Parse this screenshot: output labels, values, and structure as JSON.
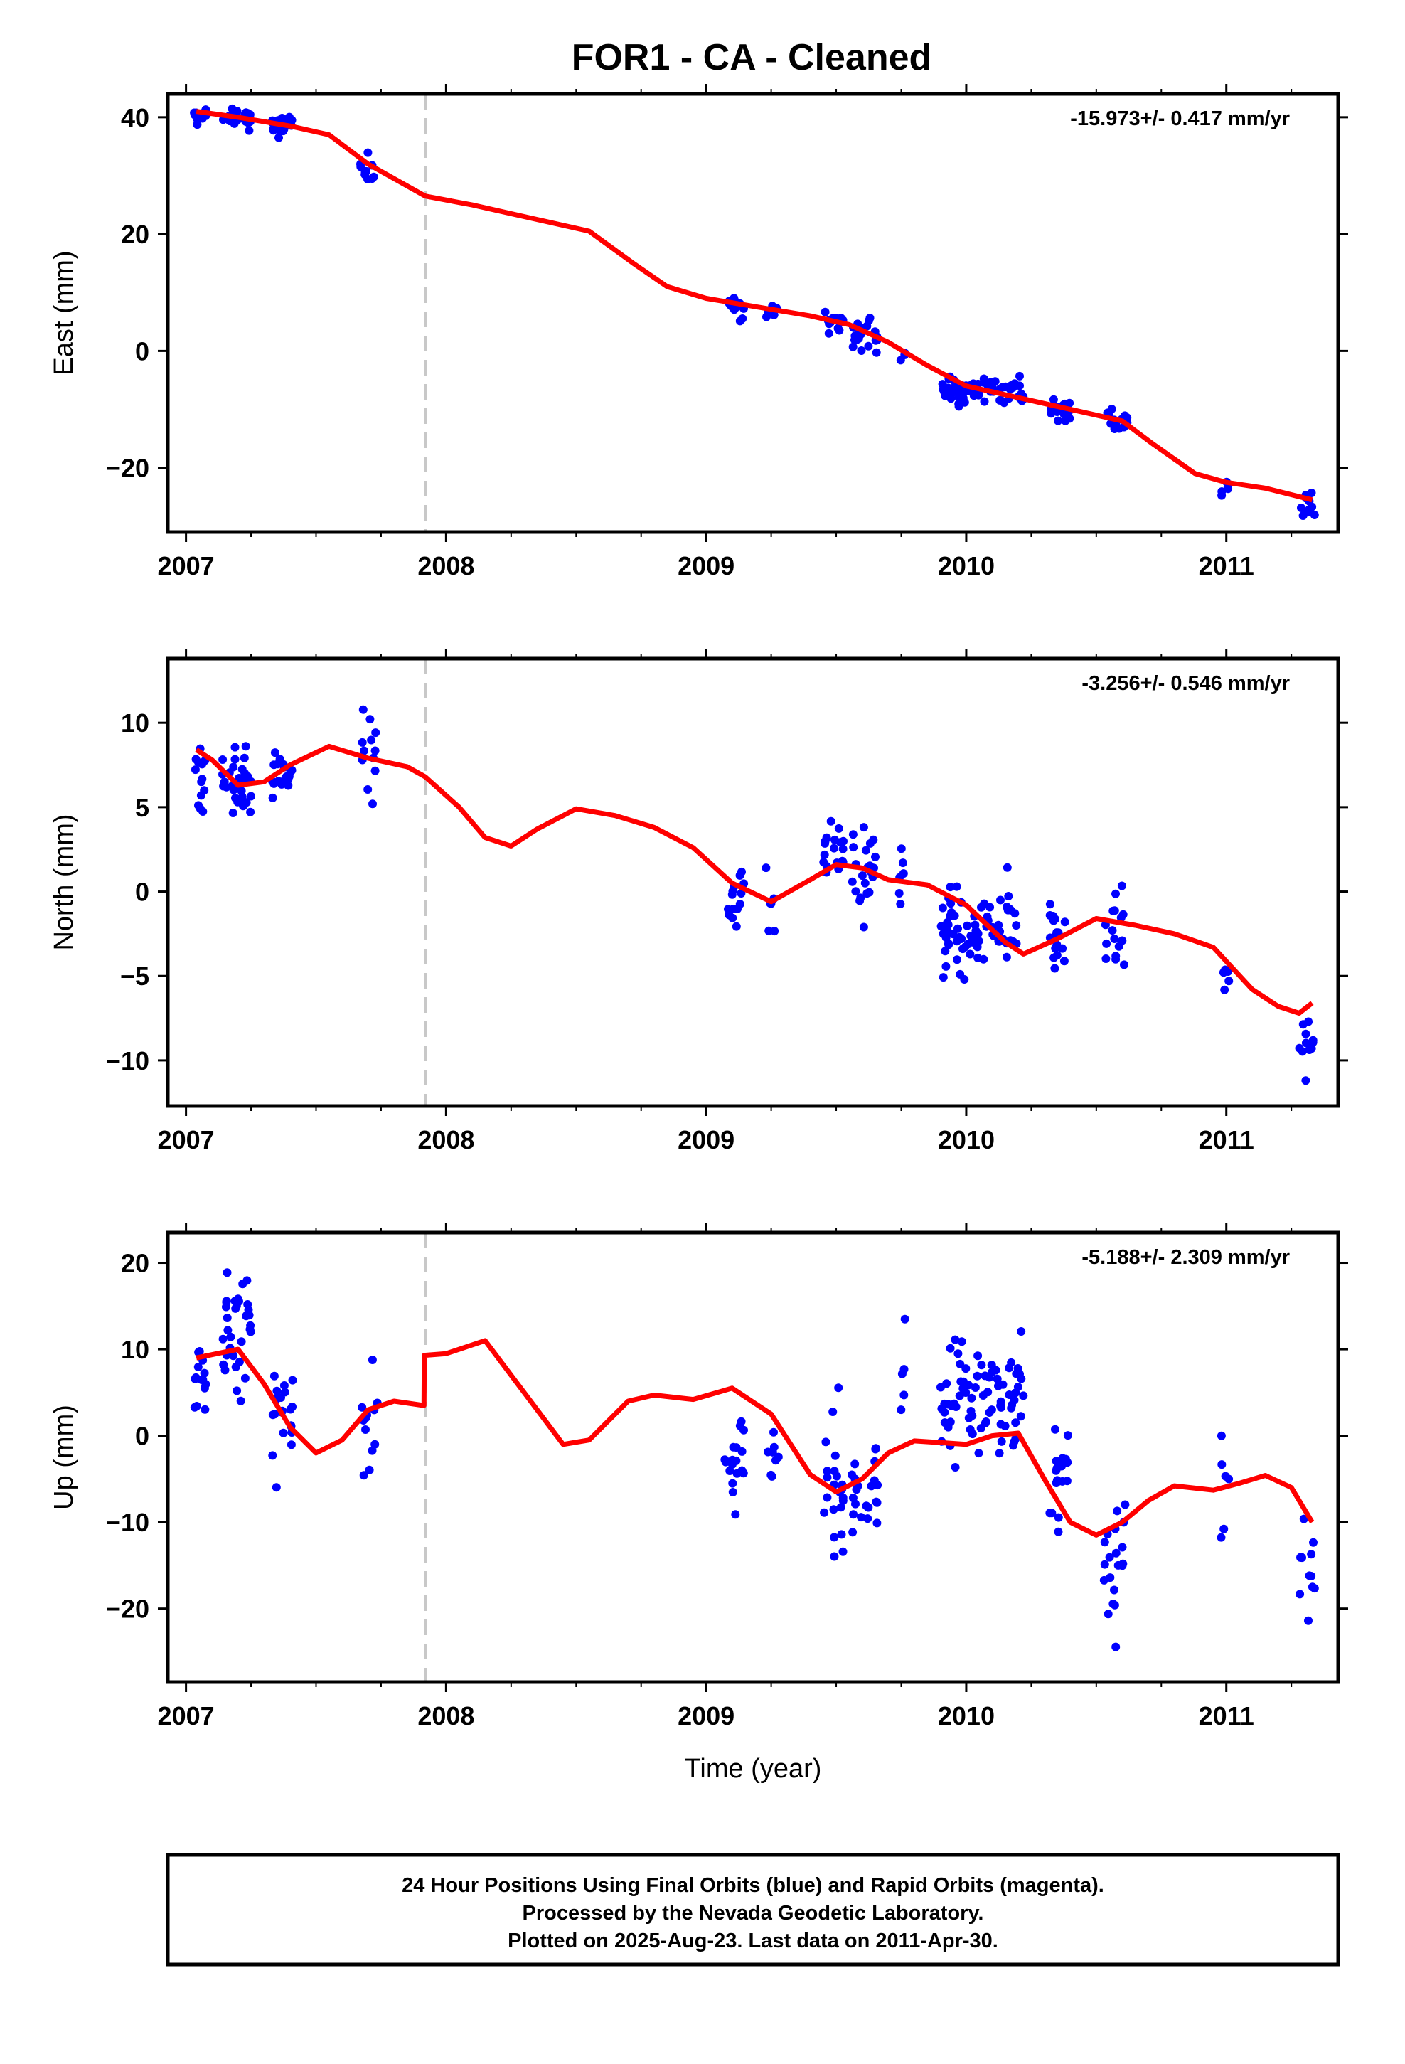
{
  "title": "FOR1  - CA - Cleaned",
  "colors": {
    "fit": "#ff0000",
    "points": "#0000ff",
    "offset_line": "#c8c8c8",
    "frame": "#000000"
  },
  "footer": {
    "line1": "24 Hour Positions Using Final Orbits (blue) and Rapid Orbits (magenta).",
    "line2": "Processed by the Nevada Geodetic Laboratory.",
    "line3": "Plotted on 2025-Aug-23. Last data on 2011-Apr-30."
  },
  "chart_data": [
    {
      "type": "scatter",
      "component": "east",
      "ylabel": "East (mm)",
      "xlabel": "",
      "rate_label": "-15.973+/- 0.417 mm/yr",
      "xlim": [
        2006.93,
        2011.43
      ],
      "ylim": [
        -31,
        44
      ],
      "xticks": [
        2007,
        2008,
        2009,
        2010,
        2011
      ],
      "yticks": [
        -20,
        0,
        20,
        40
      ],
      "ytick_labels": [
        "−20",
        "0",
        "20",
        "40"
      ],
      "offset_epochs": [
        2007.92
      ],
      "fit": [
        [
          2007.04,
          41.0
        ],
        [
          2007.2,
          40.0
        ],
        [
          2007.4,
          38.5
        ],
        [
          2007.55,
          37.0
        ],
        [
          2007.7,
          32.0
        ],
        [
          2007.92,
          26.5
        ],
        [
          2008.1,
          25.0
        ],
        [
          2008.3,
          23.0
        ],
        [
          2008.55,
          20.5
        ],
        [
          2008.72,
          15.0
        ],
        [
          2008.85,
          11.0
        ],
        [
          2009.0,
          9.0
        ],
        [
          2009.2,
          7.5
        ],
        [
          2009.4,
          6.0
        ],
        [
          2009.55,
          4.5
        ],
        [
          2009.7,
          1.5
        ],
        [
          2009.85,
          -2.5
        ],
        [
          2010.0,
          -6.0
        ],
        [
          2010.15,
          -7.5
        ],
        [
          2010.3,
          -9.0
        ],
        [
          2010.45,
          -10.5
        ],
        [
          2010.6,
          -12.0
        ],
        [
          2010.72,
          -16.0
        ],
        [
          2010.88,
          -21.0
        ],
        [
          2011.0,
          -22.5
        ],
        [
          2011.15,
          -23.5
        ],
        [
          2011.33,
          -25.5
        ]
      ],
      "clusters": [
        {
          "x0": 2007.03,
          "x1": 2007.08,
          "n": 14,
          "yc": 40.3,
          "ys": 0.9,
          "seed": 11
        },
        {
          "x0": 2007.14,
          "x1": 2007.25,
          "n": 30,
          "yc": 39.6,
          "ys": 1.0,
          "seed": 12
        },
        {
          "x0": 2007.33,
          "x1": 2007.41,
          "n": 22,
          "yc": 38.6,
          "ys": 1.3,
          "seed": 13
        },
        {
          "x0": 2007.67,
          "x1": 2007.74,
          "n": 10,
          "yc": 31.0,
          "ys": 1.8,
          "seed": 14
        },
        {
          "x0": 2009.07,
          "x1": 2009.15,
          "n": 14,
          "yc": 7.8,
          "ys": 1.5,
          "seed": 15
        },
        {
          "x0": 2009.23,
          "x1": 2009.28,
          "n": 8,
          "yc": 7.0,
          "ys": 0.9,
          "seed": 16
        },
        {
          "x0": 2009.45,
          "x1": 2009.53,
          "n": 14,
          "yc": 5.3,
          "ys": 0.9,
          "seed": 17
        },
        {
          "x0": 2009.56,
          "x1": 2009.66,
          "n": 22,
          "yc": 3.0,
          "ys": 2.0,
          "seed": 18
        },
        {
          "x0": 2009.74,
          "x1": 2009.77,
          "n": 3,
          "yc": -1.5,
          "ys": 1.5,
          "seed": 19
        },
        {
          "x0": 2009.9,
          "x1": 2010.22,
          "n": 80,
          "yc": -7.0,
          "ys": 1.4,
          "seed": 20
        },
        {
          "x0": 2010.32,
          "x1": 2010.4,
          "n": 18,
          "yc": -9.8,
          "ys": 1.5,
          "seed": 21
        },
        {
          "x0": 2010.53,
          "x1": 2010.62,
          "n": 16,
          "yc": -12.0,
          "ys": 1.2,
          "seed": 22
        },
        {
          "x0": 2010.98,
          "x1": 2011.01,
          "n": 5,
          "yc": -23.5,
          "ys": 1.3,
          "seed": 23
        },
        {
          "x0": 2011.28,
          "x1": 2011.34,
          "n": 10,
          "yc": -26.5,
          "ys": 1.8,
          "seed": 24
        }
      ]
    },
    {
      "type": "scatter",
      "component": "north",
      "ylabel": "North (mm)",
      "xlabel": "",
      "rate_label": "-3.256+/- 0.546 mm/yr",
      "xlim": [
        2006.93,
        2011.43
      ],
      "ylim": [
        -12.7,
        13.8
      ],
      "xticks": [
        2007,
        2008,
        2009,
        2010,
        2011
      ],
      "yticks": [
        -10,
        -5,
        0,
        5,
        10
      ],
      "ytick_labels": [
        "−10",
        "−5",
        "0",
        "5",
        "10"
      ],
      "offset_epochs": [
        2007.92
      ],
      "fit": [
        [
          2007.04,
          8.4
        ],
        [
          2007.1,
          7.8
        ],
        [
          2007.2,
          6.3
        ],
        [
          2007.3,
          6.5
        ],
        [
          2007.4,
          7.5
        ],
        [
          2007.55,
          8.6
        ],
        [
          2007.7,
          7.9
        ],
        [
          2007.85,
          7.4
        ],
        [
          2007.92,
          6.8
        ],
        [
          2008.05,
          5.0
        ],
        [
          2008.15,
          3.2
        ],
        [
          2008.25,
          2.7
        ],
        [
          2008.35,
          3.7
        ],
        [
          2008.5,
          4.9
        ],
        [
          2008.65,
          4.5
        ],
        [
          2008.8,
          3.8
        ],
        [
          2008.95,
          2.6
        ],
        [
          2009.1,
          0.5
        ],
        [
          2009.25,
          -0.6
        ],
        [
          2009.4,
          0.7
        ],
        [
          2009.5,
          1.6
        ],
        [
          2009.6,
          1.4
        ],
        [
          2009.7,
          0.7
        ],
        [
          2009.85,
          0.4
        ],
        [
          2010.0,
          -0.8
        ],
        [
          2010.15,
          -3.0
        ],
        [
          2010.22,
          -3.7
        ],
        [
          2010.35,
          -2.8
        ],
        [
          2010.5,
          -1.6
        ],
        [
          2010.65,
          -2.0
        ],
        [
          2010.8,
          -2.5
        ],
        [
          2010.95,
          -3.3
        ],
        [
          2011.1,
          -5.8
        ],
        [
          2011.2,
          -6.8
        ],
        [
          2011.28,
          -7.2
        ],
        [
          2011.33,
          -6.6
        ]
      ],
      "clusters": [
        {
          "x0": 2007.03,
          "x1": 2007.08,
          "n": 14,
          "yc": 7.2,
          "ys": 1.2,
          "seed": 31
        },
        {
          "x0": 2007.14,
          "x1": 2007.25,
          "n": 34,
          "yc": 6.6,
          "ys": 1.4,
          "seed": 32
        },
        {
          "x0": 2007.33,
          "x1": 2007.41,
          "n": 20,
          "yc": 6.8,
          "ys": 1.1,
          "seed": 33
        },
        {
          "x0": 2007.66,
          "x1": 2007.74,
          "n": 12,
          "yc": 7.6,
          "ys": 2.5,
          "seed": 34
        },
        {
          "x0": 2009.07,
          "x1": 2009.15,
          "n": 14,
          "yc": -0.5,
          "ys": 1.3,
          "seed": 35
        },
        {
          "x0": 2009.23,
          "x1": 2009.28,
          "n": 7,
          "yc": -1.3,
          "ys": 1.2,
          "seed": 36
        },
        {
          "x0": 2009.45,
          "x1": 2009.53,
          "n": 18,
          "yc": 2.2,
          "ys": 1.5,
          "seed": 37
        },
        {
          "x0": 2009.56,
          "x1": 2009.66,
          "n": 24,
          "yc": 1.8,
          "ys": 1.8,
          "seed": 38
        },
        {
          "x0": 2009.74,
          "x1": 2009.77,
          "n": 6,
          "yc": 0.8,
          "ys": 1.6,
          "seed": 39
        },
        {
          "x0": 2009.9,
          "x1": 2010.22,
          "n": 80,
          "yc": -2.3,
          "ys": 1.7,
          "seed": 40
        },
        {
          "x0": 2010.32,
          "x1": 2010.4,
          "n": 18,
          "yc": -2.0,
          "ys": 1.9,
          "seed": 41
        },
        {
          "x0": 2010.53,
          "x1": 2010.62,
          "n": 16,
          "yc": -2.8,
          "ys": 1.8,
          "seed": 42
        },
        {
          "x0": 2010.98,
          "x1": 2011.01,
          "n": 5,
          "yc": -5.4,
          "ys": 0.6,
          "seed": 43
        },
        {
          "x0": 2011.28,
          "x1": 2011.34,
          "n": 12,
          "yc": -8.9,
          "ys": 1.3,
          "seed": 44
        }
      ]
    },
    {
      "type": "scatter",
      "component": "up",
      "ylabel": "Up (mm)",
      "xlabel": "Time (year)",
      "rate_label": "-5.188+/- 2.309 mm/yr",
      "xlim": [
        2006.93,
        2011.43
      ],
      "ylim": [
        -28.5,
        23.5
      ],
      "xticks": [
        2007,
        2008,
        2009,
        2010,
        2011
      ],
      "yticks": [
        -20,
        -10,
        0,
        10,
        20
      ],
      "ytick_labels": [
        "−20",
        "−10",
        "0",
        "10",
        "20"
      ],
      "offset_epochs": [
        2007.92
      ],
      "fit": [
        [
          2007.04,
          9.0
        ],
        [
          2007.2,
          10.0
        ],
        [
          2007.3,
          6.0
        ],
        [
          2007.4,
          1.0
        ],
        [
          2007.5,
          -2.0
        ],
        [
          2007.6,
          -0.5
        ],
        [
          2007.7,
          3.0
        ],
        [
          2007.8,
          4.0
        ],
        [
          2007.915,
          3.5
        ],
        [
          2007.916,
          9.3
        ],
        [
          2008.0,
          9.5
        ],
        [
          2008.15,
          11.0
        ],
        [
          2008.3,
          5.0
        ],
        [
          2008.45,
          -1.0
        ],
        [
          2008.55,
          -0.5
        ],
        [
          2008.7,
          4.0
        ],
        [
          2008.8,
          4.7
        ],
        [
          2008.95,
          4.2
        ],
        [
          2009.1,
          5.5
        ],
        [
          2009.25,
          2.5
        ],
        [
          2009.4,
          -4.5
        ],
        [
          2009.5,
          -6.5
        ],
        [
          2009.6,
          -5.0
        ],
        [
          2009.7,
          -2.0
        ],
        [
          2009.8,
          -0.6
        ],
        [
          2009.9,
          -0.8
        ],
        [
          2010.0,
          -1.0
        ],
        [
          2010.1,
          0.0
        ],
        [
          2010.2,
          0.3
        ],
        [
          2010.3,
          -5.0
        ],
        [
          2010.4,
          -10.0
        ],
        [
          2010.5,
          -11.5
        ],
        [
          2010.6,
          -10.0
        ],
        [
          2010.7,
          -7.5
        ],
        [
          2010.8,
          -5.8
        ],
        [
          2010.95,
          -6.3
        ],
        [
          2011.05,
          -5.5
        ],
        [
          2011.15,
          -4.6
        ],
        [
          2011.25,
          -6.0
        ],
        [
          2011.33,
          -10.0
        ]
      ],
      "clusters": [
        {
          "x0": 2007.03,
          "x1": 2007.08,
          "n": 14,
          "yc": 6.0,
          "ys": 3.0,
          "seed": 51
        },
        {
          "x0": 2007.14,
          "x1": 2007.25,
          "n": 36,
          "yc": 12.5,
          "ys": 5.0,
          "seed": 52
        },
        {
          "x0": 2007.33,
          "x1": 2007.41,
          "n": 20,
          "yc": 2.0,
          "ys": 3.0,
          "seed": 53
        },
        {
          "x0": 2007.67,
          "x1": 2007.74,
          "n": 12,
          "yc": 0.0,
          "ys": 6.0,
          "seed": 54
        },
        {
          "x0": 2009.07,
          "x1": 2009.15,
          "n": 18,
          "yc": -3.0,
          "ys": 4.0,
          "seed": 55
        },
        {
          "x0": 2009.23,
          "x1": 2009.28,
          "n": 8,
          "yc": -3.0,
          "ys": 4.0,
          "seed": 56
        },
        {
          "x0": 2009.45,
          "x1": 2009.53,
          "n": 22,
          "yc": -6.0,
          "ys": 5.0,
          "seed": 57
        },
        {
          "x0": 2009.56,
          "x1": 2009.66,
          "n": 24,
          "yc": -6.0,
          "ys": 5.0,
          "seed": 58
        },
        {
          "x0": 2009.74,
          "x1": 2009.77,
          "n": 5,
          "yc": 5.0,
          "ys": 5.0,
          "seed": 59
        },
        {
          "x0": 2009.9,
          "x1": 2010.22,
          "n": 80,
          "yc": 4.0,
          "ys": 4.5,
          "seed": 60
        },
        {
          "x0": 2010.32,
          "x1": 2010.4,
          "n": 18,
          "yc": -5.0,
          "ys": 4.5,
          "seed": 61
        },
        {
          "x0": 2010.53,
          "x1": 2010.62,
          "n": 20,
          "yc": -15.0,
          "ys": 6.0,
          "seed": 62
        },
        {
          "x0": 2010.98,
          "x1": 2011.01,
          "n": 6,
          "yc": -7.0,
          "ys": 6.0,
          "seed": 63
        },
        {
          "x0": 2011.28,
          "x1": 2011.34,
          "n": 12,
          "yc": -17.0,
          "ys": 5.0,
          "seed": 64
        }
      ]
    }
  ]
}
